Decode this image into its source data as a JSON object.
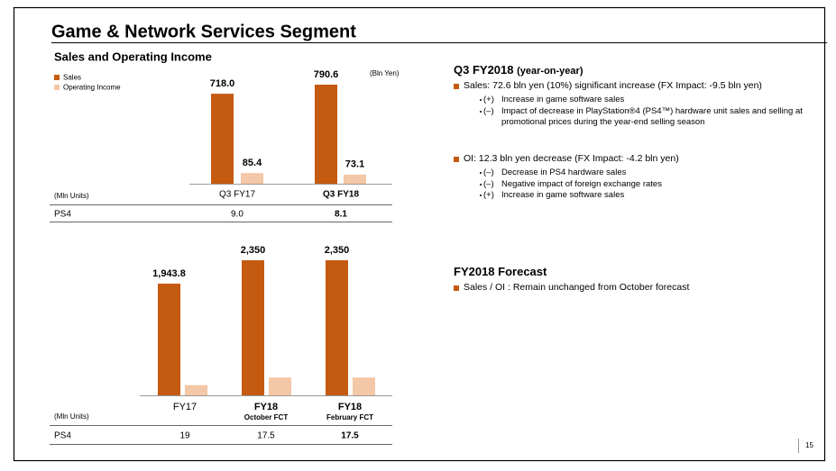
{
  "title": "Game & Network Services Segment",
  "section_title": "Sales and Operating Income",
  "unit": "(Bln Yen)",
  "chart_data": [
    {
      "type": "bar",
      "categories": [
        "Q3 FY17",
        "Q3 FY18"
      ],
      "series": [
        {
          "name": "Sales",
          "color": "#c55a11",
          "values": [
            718.0,
            790.6
          ],
          "value_labels": [
            "718.0",
            "790.6"
          ]
        },
        {
          "name": "Operating Income",
          "color": "#f4c7a6",
          "values": [
            85.4,
            73.1
          ],
          "value_labels": [
            "85.4",
            "73.1"
          ]
        }
      ],
      "table": {
        "unit": "(Mln Units)",
        "label": "PS4",
        "values": [
          "9.0",
          "8.1"
        ]
      }
    },
    {
      "type": "bar",
      "categories": [
        "FY17",
        "FY18",
        "FY18"
      ],
      "category_notes": [
        null,
        "October FCT",
        "February FCT"
      ],
      "series": [
        {
          "color": "#c55a11",
          "values": [
            1943.8,
            2350,
            2350
          ],
          "value_labels": [
            "1,943.8",
            "2,350",
            "2,350"
          ]
        },
        {
          "color": "#f4c7a6",
          "values": [
            177.5,
            310,
            310
          ]
        }
      ],
      "table": {
        "unit": "(Mln Units)",
        "label": "PS4",
        "values": [
          "19",
          "17.5",
          "17.5"
        ]
      }
    }
  ],
  "q3": {
    "heading": "Q3 FY2018",
    "heading_note": "(year-on-year)",
    "bullets": [
      {
        "text": "Sales: 72.6 bln yen (10%) significant increase (FX Impact: -9.5 bln yen)",
        "items": [
          {
            "sign": "(+)",
            "text": "Increase in game software sales"
          },
          {
            "sign": "(–)",
            "text": "Impact of decrease in PlayStation®4 (PS4™) hardware unit sales and selling at promotional prices during the year-end selling season"
          }
        ]
      },
      {
        "text": "OI: 12.3 bln yen decrease (FX Impact: -4.2 bln yen)",
        "items": [
          {
            "sign": "(–)",
            "text": "Decrease in PS4 hardware sales"
          },
          {
            "sign": "(–)",
            "text": "Negative impact of foreign exchange rates"
          },
          {
            "sign": "(+)",
            "text": "Increase in game software sales"
          }
        ]
      }
    ]
  },
  "forecast": {
    "heading": "FY2018 Forecast",
    "bullets": [
      "Sales / OI : Remain unchanged from October forecast"
    ]
  },
  "page_number": "15"
}
